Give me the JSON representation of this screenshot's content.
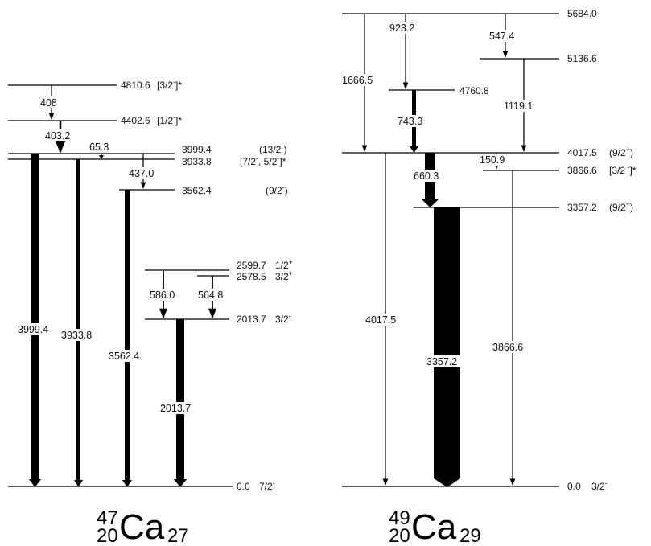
{
  "ca47": {
    "nucleus": {
      "mass": "47",
      "z": "20",
      "symbol": "Ca",
      "n": "27"
    },
    "levels": [
      {
        "energy": "4810.6",
        "spin": "[3/2",
        "sup": "-",
        "tail": "]*"
      },
      {
        "energy": "4402.6",
        "spin": "[1/2",
        "sup": "-",
        "tail": "]*"
      },
      {
        "energy": "3999.4",
        "spin": "(13/2 )",
        "sup": "",
        "tail": ""
      },
      {
        "energy": "3933.8",
        "spin": "[7/2",
        "sup": "-",
        "tail": ", 5/2",
        "sup2": "-",
        "tail2": "]*"
      },
      {
        "energy": "3562.4",
        "spin": "(9/2",
        "sup": "-",
        "tail": ")"
      },
      {
        "energy": "2599.7",
        "spin": "1/2",
        "sup": "+",
        "tail": ""
      },
      {
        "energy": "2578.5",
        "spin": "3/2",
        "sup": "+",
        "tail": ""
      },
      {
        "energy": "2013.7",
        "spin": "3/2",
        "sup": "-",
        "tail": ""
      },
      {
        "energy": "0.0",
        "spin": "7/2",
        "sup": "-",
        "tail": ""
      }
    ],
    "gammas": [
      "408",
      "403.2",
      "65.3",
      "437.0",
      "3999.4",
      "3933.8",
      "3562.4",
      "586.0",
      "564.8",
      "2013.7"
    ]
  },
  "ca49": {
    "nucleus": {
      "mass": "49",
      "z": "20",
      "symbol": "Ca",
      "n": "29"
    },
    "levels": [
      {
        "energy": "5684.0",
        "spin": "",
        "sup": "",
        "tail": ""
      },
      {
        "energy": "5136.6",
        "spin": "",
        "sup": "",
        "tail": ""
      },
      {
        "energy": "4760.8",
        "spin": "",
        "sup": "",
        "tail": ""
      },
      {
        "energy": "4017.5",
        "spin": "(9/2",
        "sup": "+",
        "tail": ")"
      },
      {
        "energy": "3866.6",
        "spin": "[3/2",
        "sup": " -",
        "tail": "]*"
      },
      {
        "energy": "3357.2",
        "spin": "(9/2",
        "sup": "+",
        "tail": ")"
      },
      {
        "energy": "0.0",
        "spin": "3/2",
        "sup": "-",
        "tail": ""
      }
    ],
    "gammas": [
      "1666.5",
      "923.2",
      "547.4",
      "743.3",
      "1119.1",
      "660.3",
      "150.9",
      "4017.5",
      "3357.2",
      "3866.6"
    ]
  }
}
